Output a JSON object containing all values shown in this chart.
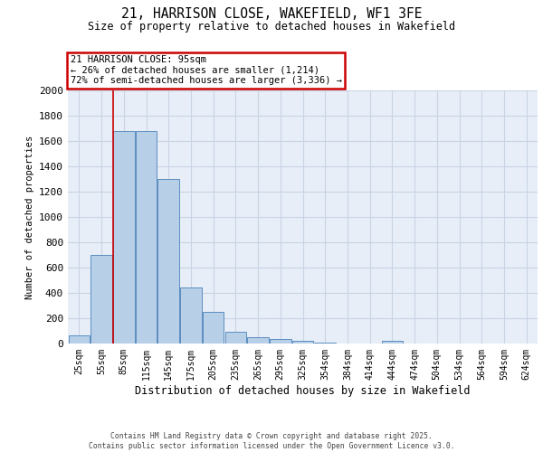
{
  "title_line1": "21, HARRISON CLOSE, WAKEFIELD, WF1 3FE",
  "title_line2": "Size of property relative to detached houses in Wakefield",
  "xlabel": "Distribution of detached houses by size in Wakefield",
  "ylabel": "Number of detached properties",
  "categories": [
    "25sqm",
    "55sqm",
    "85sqm",
    "115sqm",
    "145sqm",
    "175sqm",
    "205sqm",
    "235sqm",
    "265sqm",
    "295sqm",
    "325sqm",
    "354sqm",
    "384sqm",
    "414sqm",
    "444sqm",
    "474sqm",
    "504sqm",
    "534sqm",
    "564sqm",
    "594sqm",
    "624sqm"
  ],
  "values": [
    65,
    700,
    1680,
    1680,
    1300,
    440,
    250,
    95,
    50,
    35,
    25,
    10,
    0,
    0,
    20,
    0,
    0,
    0,
    0,
    0,
    0
  ],
  "bar_color": "#b8cfe8",
  "bar_edge_color": "#5b8dc0",
  "grid_color": "#c8d4e4",
  "background_color": "#e8eef8",
  "annotation_text": "21 HARRISON CLOSE: 95sqm\n← 26% of detached houses are smaller (1,214)\n72% of semi-detached houses are larger (3,336) →",
  "annotation_box_color": "#ffffff",
  "annotation_box_edge_color": "#cc0000",
  "red_line_index": 2,
  "ylim": [
    0,
    2000
  ],
  "yticks": [
    0,
    200,
    400,
    600,
    800,
    1000,
    1200,
    1400,
    1600,
    1800,
    2000
  ],
  "footer_line1": "Contains HM Land Registry data © Crown copyright and database right 2025.",
  "footer_line2": "Contains public sector information licensed under the Open Government Licence v3.0."
}
